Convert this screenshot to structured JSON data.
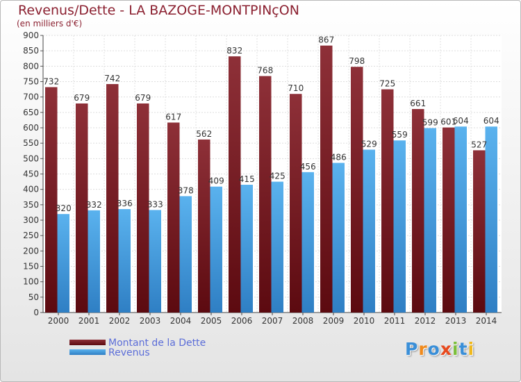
{
  "title": "Revenus/Dette - LA BAZOGE-MONTPINçON",
  "subtitle": "(en milliers d'€)",
  "logo": {
    "text": "Proxiti"
  },
  "colors": {
    "debt": "#7a1f26",
    "revenue": "#4aa6e6",
    "title": "#8b2030",
    "legend_text": "#5b6dd8"
  },
  "legend": {
    "debt_label": "Montant de la Dette",
    "revenue_label": "Revenus"
  },
  "chart_data": {
    "type": "bar",
    "title": "Revenus/Dette - LA BAZOGE-MONTPINçON",
    "ylabel": "(en milliers d'€)",
    "xlabel": "",
    "categories": [
      "2000",
      "2001",
      "2002",
      "2003",
      "2004",
      "2005",
      "2006",
      "2007",
      "2008",
      "2009",
      "2010",
      "2011",
      "2012",
      "2013",
      "2014"
    ],
    "series": [
      {
        "name": "Montant de la Dette",
        "values": [
          732,
          679,
          742,
          679,
          617,
          562,
          832,
          768,
          710,
          867,
          798,
          725,
          661,
          601,
          527
        ]
      },
      {
        "name": "Revenus",
        "values": [
          320,
          332,
          336,
          333,
          378,
          409,
          415,
          425,
          456,
          486,
          529,
          559,
          599,
          604,
          604
        ]
      }
    ],
    "ylim": [
      0,
      900
    ],
    "yticks": [
      0,
      50,
      100,
      150,
      200,
      250,
      300,
      350,
      400,
      450,
      500,
      550,
      600,
      650,
      700,
      750,
      800,
      850,
      900
    ],
    "grid": true,
    "legend_position": "bottom-left"
  }
}
